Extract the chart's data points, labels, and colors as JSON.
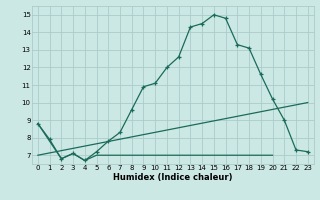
{
  "xlabel": "Humidex (Indice chaleur)",
  "bg_color": "#cce8e4",
  "grid_color": "#aaccca",
  "line_color": "#1a6b5a",
  "xlim": [
    -0.5,
    23.5
  ],
  "ylim": [
    6.5,
    15.5
  ],
  "xticks": [
    0,
    1,
    2,
    3,
    4,
    5,
    6,
    7,
    8,
    9,
    10,
    11,
    12,
    13,
    14,
    15,
    16,
    17,
    18,
    19,
    20,
    21,
    22,
    23
  ],
  "yticks": [
    7,
    8,
    9,
    10,
    11,
    12,
    13,
    14,
    15
  ],
  "line1_x": [
    0,
    1,
    2,
    3,
    4,
    5,
    6,
    7,
    8,
    9,
    10,
    11,
    12,
    13,
    14,
    15,
    16,
    17,
    18,
    19,
    20,
    21,
    22,
    23
  ],
  "line1_y": [
    8.8,
    7.9,
    6.8,
    7.1,
    6.7,
    7.2,
    7.8,
    8.3,
    9.6,
    10.9,
    11.1,
    12.0,
    12.6,
    14.3,
    14.5,
    15.0,
    14.8,
    13.3,
    13.1,
    11.6,
    10.2,
    9.0,
    7.3,
    7.2
  ],
  "line2_x": [
    0,
    2,
    3,
    4,
    5,
    6,
    7,
    8,
    9,
    10,
    11,
    12,
    13,
    14,
    15,
    16,
    17,
    18,
    19,
    20
  ],
  "line2_y": [
    8.8,
    6.8,
    7.1,
    6.7,
    7.0,
    7.0,
    7.0,
    7.0,
    7.0,
    7.0,
    7.0,
    7.0,
    7.0,
    7.0,
    7.0,
    7.0,
    7.0,
    7.0,
    7.0,
    7.0
  ],
  "line3_x": [
    0,
    23
  ],
  "line3_y": [
    7.0,
    10.0
  ]
}
